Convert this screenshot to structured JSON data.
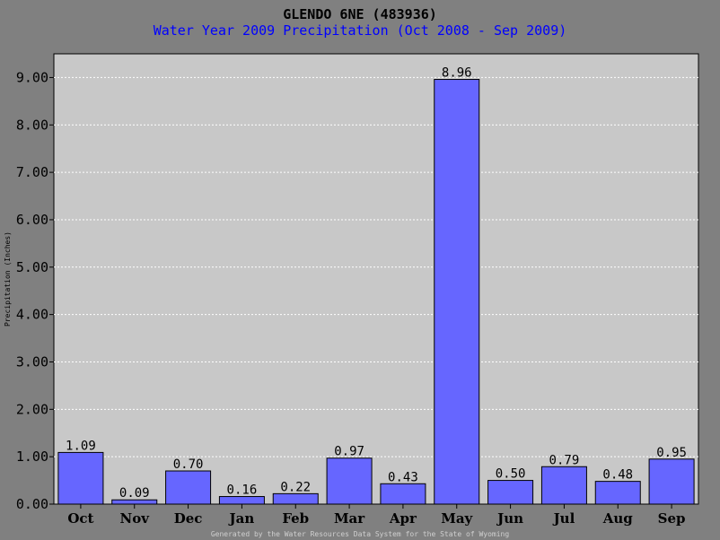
{
  "chart_data": {
    "type": "bar",
    "title": "GLENDO 6NE (483936)",
    "subtitle": "Water Year 2009 Precipitation (Oct 2008 - Sep 2009)",
    "ylabel": "Precipitation (Inches)",
    "xlabel": "",
    "categories": [
      "Oct",
      "Nov",
      "Dec",
      "Jan",
      "Feb",
      "Mar",
      "Apr",
      "May",
      "Jun",
      "Jul",
      "Aug",
      "Sep"
    ],
    "values": [
      1.09,
      0.09,
      0.7,
      0.16,
      0.22,
      0.97,
      0.43,
      8.96,
      0.5,
      0.79,
      0.48,
      0.95
    ],
    "value_labels": [
      "1.09",
      "0.09",
      "0.70",
      "0.16",
      "0.22",
      "0.97",
      "0.43",
      "8.96",
      "0.50",
      "0.79",
      "0.48",
      "0.95"
    ],
    "ylim": [
      0,
      9.5
    ],
    "yticks": [
      0,
      1,
      2,
      3,
      4,
      5,
      6,
      7,
      8,
      9
    ],
    "ytick_labels": [
      "0.00",
      "1.00",
      "2.00",
      "3.00",
      "4.00",
      "5.00",
      "6.00",
      "7.00",
      "8.00",
      "9.00"
    ],
    "grid": true,
    "footer": "Generated by the Water Resources Data System for the State of Wyoming",
    "colors": {
      "bar": "#6666ff",
      "plot_background": "#c8c8c8",
      "page_background": "#808080",
      "grid": "#ffffff",
      "subtitle": "#0000ff"
    }
  }
}
